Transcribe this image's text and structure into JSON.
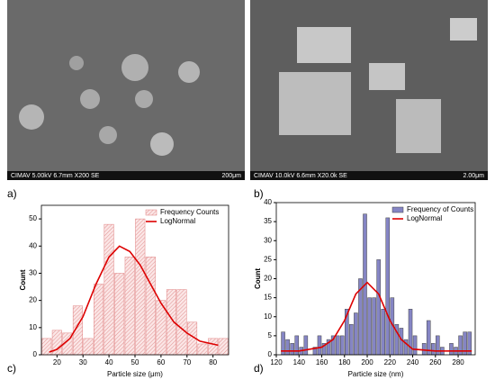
{
  "panels": [
    "a)",
    "b)",
    "c)",
    "d)"
  ],
  "images": [
    {
      "info": "CIMAV 5.00kV 6.7mm X200 SE",
      "scale": "200μm"
    },
    {
      "info": "CIMAV 10.0kV 6.6mm X20.0k SE",
      "scale": "2.00μm"
    }
  ],
  "chart_data": [
    {
      "type": "histogram",
      "xlabel": "Particle size (μm)",
      "ylabel": "Count",
      "bins": [
        14,
        18,
        22,
        26,
        30,
        34,
        38,
        42,
        46,
        50,
        54,
        58,
        62,
        66,
        70,
        74,
        78,
        82,
        86
      ],
      "series": [
        {
          "name": "Frequency Counts",
          "color": "#f3c4c4",
          "values": [
            6,
            9,
            8,
            18,
            6,
            26,
            48,
            30,
            36,
            50,
            36,
            20,
            24,
            24,
            12,
            4,
            6,
            6
          ]
        },
        {
          "name": "LogNormal",
          "color": "#dd0000",
          "x": [
            17,
            20,
            25,
            30,
            35,
            40,
            44,
            48,
            52,
            56,
            60,
            65,
            70,
            75,
            82
          ],
          "values": [
            1,
            2,
            6,
            14,
            26,
            36,
            40,
            38,
            33,
            26,
            19,
            12,
            8,
            5,
            3.5
          ]
        }
      ],
      "xlim": [
        14,
        86
      ],
      "xticks": [
        20,
        30,
        40,
        50,
        60,
        70,
        80
      ],
      "ylim": [
        0,
        55
      ],
      "yticks": [
        0,
        10,
        20,
        30,
        40,
        50
      ],
      "legend": "top right"
    },
    {
      "type": "histogram",
      "xlabel": "Particle size (nm)",
      "ylabel": "Count",
      "bins": [
        124,
        128,
        132,
        136,
        140,
        144,
        148,
        152,
        156,
        160,
        164,
        168,
        172,
        176,
        180,
        184,
        188,
        192,
        196,
        200,
        204,
        208,
        212,
        216,
        220,
        224,
        228,
        232,
        236,
        240,
        244,
        248,
        252,
        256,
        260,
        264,
        268,
        272,
        276,
        280,
        284,
        288,
        292
      ],
      "series": [
        {
          "name": "Frequency of Counts",
          "color": "#8585c4",
          "values": [
            6,
            4,
            3,
            5,
            2,
            5,
            0,
            2,
            5,
            3,
            4,
            5,
            5,
            5,
            12,
            8,
            11,
            20,
            37,
            15,
            15,
            25,
            12,
            36,
            15,
            8,
            7,
            4,
            12,
            5,
            0,
            3,
            9,
            3,
            5,
            2,
            0,
            3,
            2,
            5,
            6,
            6
          ]
        },
        {
          "name": "LogNormal",
          "color": "#dd0000",
          "x": [
            124,
            140,
            160,
            170,
            180,
            190,
            200,
            210,
            220,
            230,
            240,
            260,
            292
          ],
          "values": [
            1,
            1,
            2,
            4,
            9,
            16,
            19,
            16,
            9,
            4,
            1.5,
            1,
            1
          ]
        }
      ],
      "xlim": [
        120,
        295
      ],
      "xticks": [
        120,
        140,
        160,
        180,
        200,
        220,
        240,
        260,
        280
      ],
      "ylim": [
        0,
        40
      ],
      "yticks": [
        0,
        5,
        10,
        15,
        20,
        25,
        30,
        35,
        40
      ],
      "legend": "top right"
    }
  ]
}
